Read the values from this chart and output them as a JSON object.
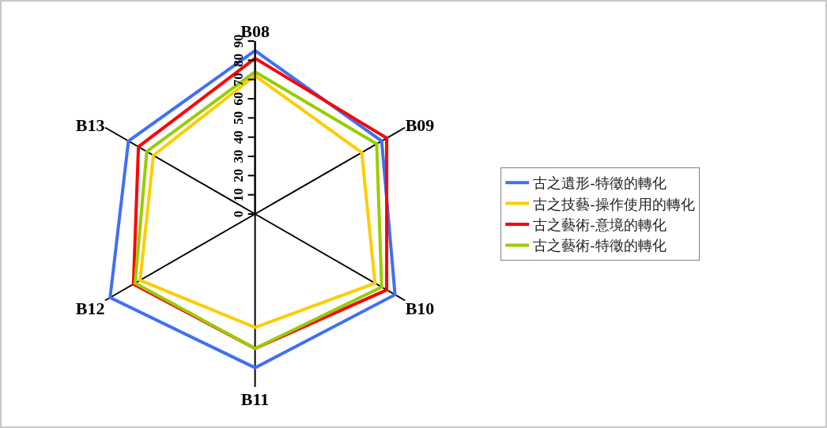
{
  "chart_data": {
    "type": "radar",
    "categories": [
      "B08",
      "B09",
      "B10",
      "B11",
      "B12",
      "B13"
    ],
    "series": [
      {
        "name": "古之遺形-特徵的轉化",
        "color": "#3f6ff5",
        "values": [
          85,
          76,
          84,
          80,
          87,
          76
        ]
      },
      {
        "name": "古之技藝-操作使用的轉化",
        "color": "#ffcc00",
        "values": [
          72,
          64,
          72,
          59,
          69,
          61
        ]
      },
      {
        "name": "古之藝術-意境的轉化",
        "color": "#ff0000",
        "values": [
          81,
          79,
          79,
          70,
          73,
          70
        ]
      },
      {
        "name": "古之藝術-特徵的轉化",
        "color": "#99cc00",
        "values": [
          74,
          73,
          76,
          70,
          72,
          65
        ]
      }
    ],
    "ylim": [
      0,
      90
    ],
    "yticks": [
      0,
      10,
      20,
      30,
      40,
      50,
      60,
      70,
      80,
      90
    ],
    "grid": false,
    "legend": "right",
    "marker": "none",
    "line_style": "solid"
  }
}
